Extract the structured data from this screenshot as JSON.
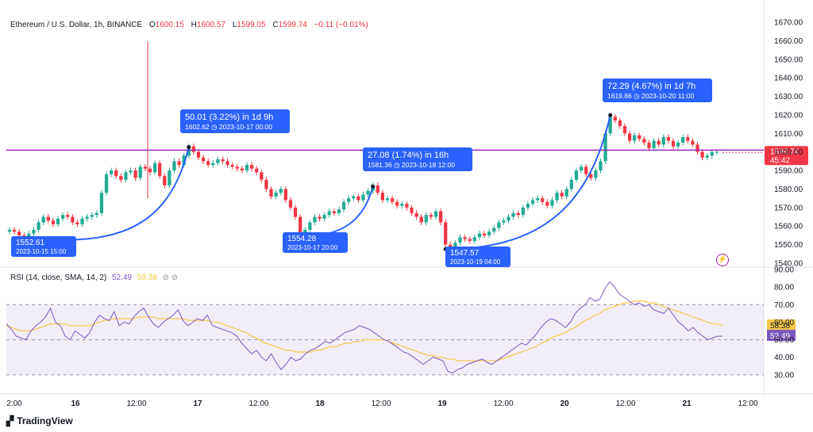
{
  "header": {
    "symbol": "Ethereum / U.S. Dollar, 1h, BINANCE",
    "o_label": "O",
    "o_value": "1600.15",
    "h_label": "H",
    "h_value": "1600.57",
    "l_label": "L",
    "l_value": "1599.05",
    "c_label": "C",
    "c_value": "1599.74",
    "change": "−0.11 (−0.01%)"
  },
  "rsi_header": {
    "label": "RSI (14, close, SMA, 14, 2)",
    "rsi_value": "52.49",
    "sma_value": "58.38",
    "icons": "⊘ ⊘"
  },
  "footer": {
    "brand": "TradingView",
    "logo_icon": "tradingview-logo-icon"
  },
  "colors": {
    "up": "#22ab94",
    "down": "#f23645",
    "curve": "#2962ff",
    "hline": "#9c27b0",
    "rsi": "#7e57c2",
    "rsi_sma": "#f7c948",
    "label_bg": "#2962ff"
  },
  "chart_data": {
    "type": "candlestick",
    "price_axis": {
      "min": 1540,
      "max": 1670,
      "ticks": [
        "1670.00",
        "1660.00",
        "1650.00",
        "1640.00",
        "1630.00",
        "1620.00",
        "1610.00",
        "1600.00",
        "1590.00",
        "1580.00",
        "1570.00",
        "1560.00",
        "1550.00",
        "1540.00"
      ]
    },
    "time_ticks": [
      "2:00",
      "16",
      "12:00",
      "17",
      "12:00",
      "18",
      "12:00",
      "19",
      "12:00",
      "20",
      "12:00",
      "21",
      "12:00"
    ],
    "horizontal_line": 1601,
    "last_price": {
      "value": "1599.74",
      "countdown": "45:42"
    },
    "lows": [
      {
        "value": "1552.61",
        "date": "2023-10-15 15:00"
      },
      {
        "value": "1554.28",
        "date": "2023-10-17 20:00"
      },
      {
        "value": "1547.57",
        "date": "2023-10-19 04:00"
      }
    ],
    "highs": [
      {
        "title": "50.01 (3.22%) in 1d 9h",
        "value": "1602.62",
        "date": "2023-10-17  00:00"
      },
      {
        "title": "27.08 (1.74%) in 16h",
        "value": "1581.36",
        "date": "2023-10-18  12:00"
      },
      {
        "title": "72.29 (4.67%) in 1d 7h",
        "value": "1619.86",
        "date": "2023-10-20  11:00"
      }
    ],
    "candles_close": [
      1558,
      1557,
      1555,
      1553,
      1556,
      1558,
      1562,
      1565,
      1563,
      1561,
      1564,
      1566,
      1565,
      1562,
      1561,
      1564,
      1565,
      1566,
      1567,
      1578,
      1588,
      1590,
      1587,
      1585,
      1589,
      1590,
      1586,
      1592,
      1591,
      1589,
      1594,
      1587,
      1582,
      1590,
      1595,
      1593,
      1598,
      1603,
      1600,
      1597,
      1595,
      1593,
      1594,
      1596,
      1595,
      1593,
      1592,
      1591,
      1590,
      1593,
      1591,
      1589,
      1585,
      1580,
      1576,
      1578,
      1580,
      1574,
      1570,
      1565,
      1556,
      1558,
      1562,
      1565,
      1564,
      1566,
      1568,
      1567,
      1569,
      1573,
      1575,
      1576,
      1574,
      1577,
      1579,
      1582,
      1578,
      1574,
      1575,
      1573,
      1571,
      1572,
      1570,
      1567,
      1565,
      1562,
      1566,
      1565,
      1568,
      1562,
      1550,
      1549,
      1551,
      1554,
      1553,
      1552,
      1554,
      1556,
      1555,
      1557,
      1559,
      1562,
      1563,
      1565,
      1567,
      1566,
      1570,
      1572,
      1574,
      1575,
      1573,
      1571,
      1574,
      1578,
      1576,
      1580,
      1585,
      1590,
      1592,
      1588,
      1586,
      1590,
      1595,
      1610,
      1619,
      1617,
      1614,
      1610,
      1606,
      1609,
      1607,
      1605,
      1602,
      1606,
      1604,
      1608,
      1606,
      1603,
      1605,
      1608,
      1606,
      1604,
      1600,
      1597,
      1598,
      1600,
      1600
    ],
    "rsi_axis": {
      "min": 20,
      "max": 90,
      "ticks": [
        "90.00",
        "80.00",
        "70.00",
        "60.00",
        "50.00",
        "40.00",
        "30.00"
      ],
      "band": [
        30,
        70
      ]
    },
    "rsi": [
      59,
      56,
      52,
      51,
      50,
      55,
      58,
      60,
      63,
      68,
      60,
      58,
      52,
      50,
      55,
      53,
      51,
      54,
      60,
      64,
      62,
      61,
      66,
      58,
      60,
      59,
      63,
      66,
      68,
      63,
      59,
      57,
      60,
      62,
      64,
      67,
      61,
      58,
      60,
      62,
      61,
      64,
      58,
      57,
      56,
      55,
      54,
      52,
      48,
      45,
      42,
      44,
      40,
      38,
      42,
      37,
      33,
      36,
      40,
      38,
      39,
      42,
      44,
      45,
      47,
      49,
      48,
      50,
      52,
      54,
      55,
      56,
      58,
      57,
      56,
      54,
      52,
      50,
      49,
      47,
      45,
      43,
      42,
      40,
      38,
      36,
      38,
      40,
      39,
      38,
      32,
      31,
      33,
      34,
      36,
      37,
      38,
      39,
      37,
      36,
      38,
      40,
      42,
      44,
      46,
      48,
      47,
      50,
      53,
      57,
      60,
      62,
      61,
      59,
      57,
      60,
      65,
      68,
      70,
      74,
      72,
      73,
      79,
      83,
      80,
      76,
      74,
      72,
      70,
      71,
      69,
      70,
      67,
      66,
      65,
      68,
      64,
      60,
      58,
      55,
      57,
      54,
      52,
      50,
      51,
      52,
      52
    ],
    "rsi_sma": [
      58,
      57,
      56,
      55,
      55,
      55,
      56,
      57,
      58,
      59,
      59,
      59,
      59,
      58,
      58,
      58,
      58,
      58,
      59,
      60,
      61,
      61,
      62,
      62,
      62,
      62,
      62,
      63,
      63,
      63,
      63,
      62,
      62,
      62,
      62,
      62,
      62,
      61,
      61,
      61,
      61,
      61,
      60,
      60,
      59,
      58,
      57,
      56,
      55,
      54,
      52,
      51,
      49,
      48,
      47,
      46,
      45,
      44,
      44,
      43,
      43,
      43,
      43,
      44,
      44,
      45,
      46,
      46,
      47,
      48,
      48,
      49,
      49,
      50,
      50,
      50,
      50,
      50,
      49,
      48,
      47,
      46,
      45,
      44,
      43,
      42,
      41,
      41,
      40,
      40,
      39,
      39,
      38,
      38,
      38,
      38,
      38,
      38,
      38,
      38,
      38,
      39,
      40,
      41,
      42,
      43,
      44,
      45,
      46,
      48,
      49,
      51,
      52,
      53,
      54,
      56,
      57,
      59,
      61,
      62,
      64,
      65,
      67,
      68,
      69,
      70,
      71,
      71,
      72,
      72,
      72,
      71,
      71,
      70,
      69,
      68,
      67,
      66,
      65,
      64,
      63,
      62,
      61,
      60,
      59,
      59,
      58
    ]
  }
}
